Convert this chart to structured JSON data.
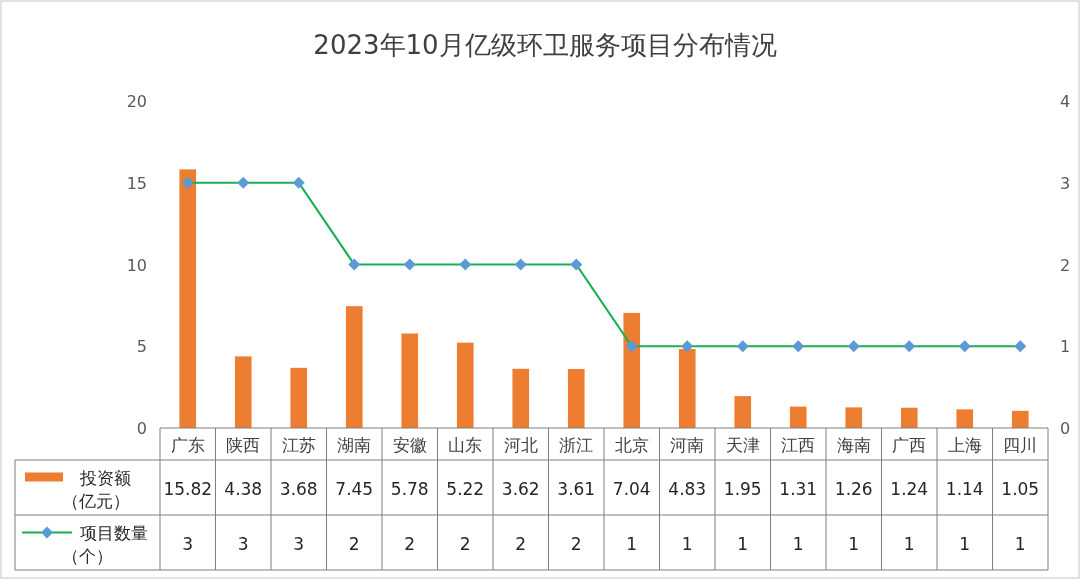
{
  "chart_data": {
    "type": "bar",
    "title": "2023年10月亿级环卫服务项目分布情况",
    "categories": [
      "广东",
      "陕西",
      "江苏",
      "湖南",
      "安徽",
      "山东",
      "河北",
      "浙江",
      "北京",
      "河南",
      "天津",
      "江西",
      "海南",
      "广西",
      "上海",
      "四川"
    ],
    "series": [
      {
        "name": "投资额（亿元）",
        "color": "#ed7d31",
        "values": [
          15.82,
          4.38,
          3.68,
          7.45,
          5.78,
          5.22,
          3.62,
          3.61,
          7.04,
          4.83,
          1.95,
          1.31,
          1.26,
          1.24,
          1.14,
          1.05
        ]
      },
      {
        "name": "项目数量（个）",
        "type": "line",
        "axis": "y2",
        "color": "#1aaf54",
        "marker": "diamond",
        "values": [
          3,
          3,
          3,
          2,
          2,
          2,
          2,
          2,
          1,
          1,
          1,
          1,
          1,
          1,
          1,
          1
        ]
      }
    ],
    "ylim": [
      0,
      20
    ],
    "yticks": [
      0,
      5,
      10,
      15,
      20
    ],
    "y2lim": [
      0,
      4
    ],
    "y2ticks": [
      0,
      1,
      2,
      3,
      4
    ],
    "data_labels": true,
    "legend": "bottom",
    "grid": false
  }
}
